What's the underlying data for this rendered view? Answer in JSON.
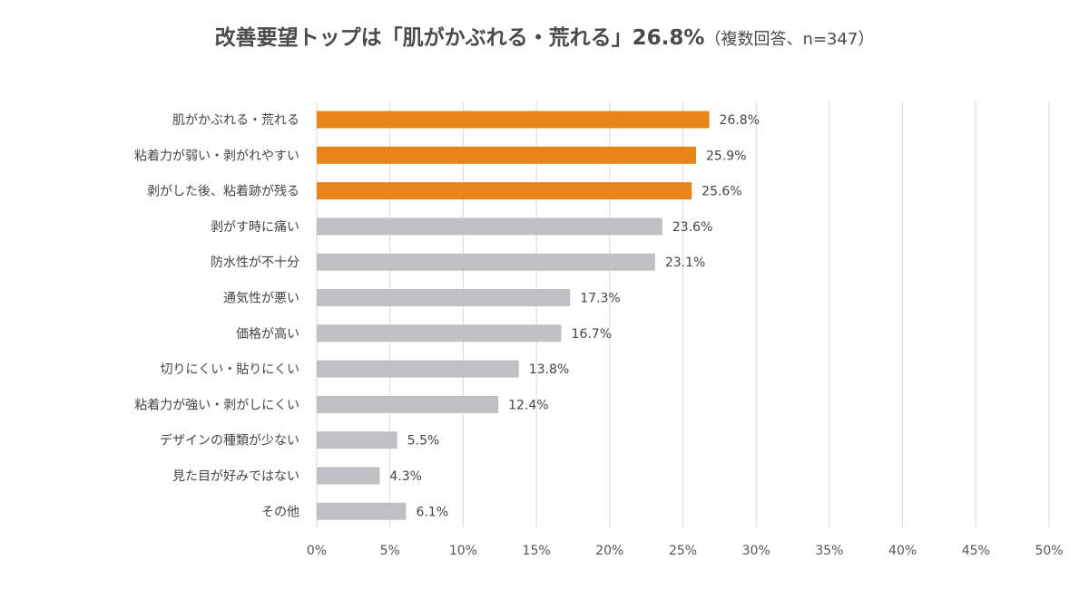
{
  "title": {
    "main": "改善要望トップは「肌がかぶれる・荒れる」26.8%",
    "sub": "（複数回答、n=347）"
  },
  "colors": {
    "highlight": "#e8841a",
    "normal": "#c0bfc3",
    "grid": "#d9d9d9"
  },
  "chart_data": {
    "type": "bar",
    "orientation": "horizontal",
    "categories": [
      "肌がかぶれる・荒れる",
      "粘着力が弱い・剥がれやすい",
      "剥がした後、粘着跡が残る",
      "剥がす時に痛い",
      "防水性が不十分",
      "通気性が悪い",
      "価格が高い",
      "切りにくい・貼りにくい",
      "粘着力が強い・剥がしにくい",
      "デザインの種類が少ない",
      "見た目が好みではない",
      "その他"
    ],
    "values": [
      26.8,
      25.9,
      25.6,
      23.6,
      23.1,
      17.3,
      16.7,
      13.8,
      12.4,
      5.5,
      4.3,
      6.1
    ],
    "value_labels": [
      "26.8%",
      "25.9%",
      "25.6%",
      "23.6%",
      "23.1%",
      "17.3%",
      "16.7%",
      "13.8%",
      "12.4%",
      "5.5%",
      "4.3%",
      "6.1%"
    ],
    "highlighted": [
      true,
      true,
      true,
      false,
      false,
      false,
      false,
      false,
      false,
      false,
      false,
      false
    ],
    "xlim": [
      0,
      50
    ],
    "xticks": [
      0,
      5,
      10,
      15,
      20,
      25,
      30,
      35,
      40,
      45,
      50
    ],
    "xtick_labels": [
      "0%",
      "5%",
      "10%",
      "15%",
      "20%",
      "25%",
      "30%",
      "35%",
      "40%",
      "45%",
      "50%"
    ],
    "grid": true,
    "legend": "none"
  }
}
